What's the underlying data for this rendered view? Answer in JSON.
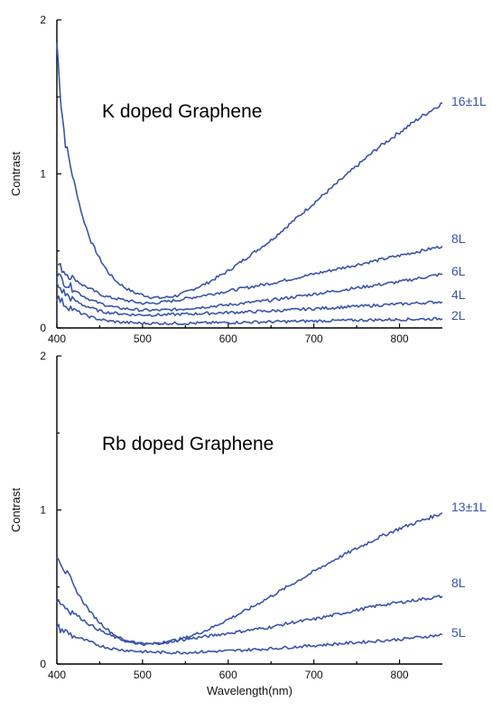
{
  "chart_data": [
    {
      "type": "line",
      "title": "K doped Graphene",
      "xlabel": "",
      "ylabel": "Contrast",
      "xlim": [
        400,
        850
      ],
      "ylim": [
        0,
        2
      ],
      "x_ticks": [
        "400",
        "500",
        "600",
        "700",
        "800"
      ],
      "y_ticks": [
        "0",
        "1",
        "2"
      ],
      "grid": false,
      "series": [
        {
          "name": "16±1L",
          "points": [
            [
              400,
              1.85
            ],
            [
              405,
              1.45
            ],
            [
              410,
              1.2
            ],
            [
              420,
              0.95
            ],
            [
              430,
              0.72
            ],
            [
              440,
              0.56
            ],
            [
              450,
              0.45
            ],
            [
              460,
              0.36
            ],
            [
              470,
              0.3
            ],
            [
              480,
              0.26
            ],
            [
              490,
              0.23
            ],
            [
              500,
              0.215
            ],
            [
              510,
              0.2
            ],
            [
              520,
              0.195
            ],
            [
              530,
              0.2
            ],
            [
              540,
              0.21
            ],
            [
              550,
              0.23
            ],
            [
              575,
              0.29
            ],
            [
              600,
              0.37
            ],
            [
              625,
              0.47
            ],
            [
              650,
              0.57
            ],
            [
              675,
              0.69
            ],
            [
              700,
              0.81
            ],
            [
              725,
              0.93
            ],
            [
              750,
              1.05
            ],
            [
              775,
              1.17
            ],
            [
              800,
              1.27
            ],
            [
              825,
              1.37
            ],
            [
              850,
              1.46
            ]
          ]
        },
        {
          "name": "8L",
          "points": [
            [
              400,
              0.42
            ],
            [
              410,
              0.36
            ],
            [
              420,
              0.32
            ],
            [
              430,
              0.28
            ],
            [
              440,
              0.25
            ],
            [
              450,
              0.22
            ],
            [
              460,
              0.2
            ],
            [
              470,
              0.19
            ],
            [
              480,
              0.18
            ],
            [
              490,
              0.17
            ],
            [
              500,
              0.16
            ],
            [
              510,
              0.16
            ],
            [
              520,
              0.165
            ],
            [
              540,
              0.18
            ],
            [
              560,
              0.2
            ],
            [
              600,
              0.24
            ],
            [
              650,
              0.29
            ],
            [
              700,
              0.35
            ],
            [
              750,
              0.41
            ],
            [
              800,
              0.47
            ],
            [
              850,
              0.53
            ]
          ]
        },
        {
          "name": "6L",
          "points": [
            [
              400,
              0.35
            ],
            [
              410,
              0.29
            ],
            [
              420,
              0.25
            ],
            [
              430,
              0.21
            ],
            [
              440,
              0.18
            ],
            [
              450,
              0.16
            ],
            [
              460,
              0.145
            ],
            [
              470,
              0.13
            ],
            [
              480,
              0.125
            ],
            [
              490,
              0.12
            ],
            [
              500,
              0.115
            ],
            [
              520,
              0.115
            ],
            [
              540,
              0.12
            ],
            [
              560,
              0.13
            ],
            [
              600,
              0.15
            ],
            [
              650,
              0.18
            ],
            [
              700,
              0.22
            ],
            [
              750,
              0.26
            ],
            [
              800,
              0.3
            ],
            [
              850,
              0.35
            ]
          ]
        },
        {
          "name": "4L",
          "points": [
            [
              400,
              0.28
            ],
            [
              410,
              0.22
            ],
            [
              420,
              0.18
            ],
            [
              430,
              0.15
            ],
            [
              440,
              0.13
            ],
            [
              450,
              0.11
            ],
            [
              460,
              0.1
            ],
            [
              470,
              0.095
            ],
            [
              480,
              0.09
            ],
            [
              490,
              0.085
            ],
            [
              500,
              0.085
            ],
            [
              520,
              0.085
            ],
            [
              550,
              0.09
            ],
            [
              600,
              0.1
            ],
            [
              650,
              0.11
            ],
            [
              700,
              0.125
            ],
            [
              750,
              0.14
            ],
            [
              800,
              0.155
            ],
            [
              850,
              0.17
            ]
          ]
        },
        {
          "name": "2L",
          "points": [
            [
              400,
              0.2
            ],
            [
              410,
              0.15
            ],
            [
              420,
              0.12
            ],
            [
              430,
              0.09
            ],
            [
              440,
              0.07
            ],
            [
              450,
              0.055
            ],
            [
              460,
              0.045
            ],
            [
              470,
              0.04
            ],
            [
              480,
              0.035
            ],
            [
              490,
              0.033
            ],
            [
              500,
              0.03
            ],
            [
              550,
              0.03
            ],
            [
              600,
              0.035
            ],
            [
              650,
              0.04
            ],
            [
              700,
              0.045
            ],
            [
              750,
              0.05
            ],
            [
              800,
              0.055
            ],
            [
              850,
              0.06
            ]
          ]
        }
      ]
    },
    {
      "type": "line",
      "title": "Rb doped Graphene",
      "xlabel": "Wavelength(nm)",
      "ylabel": "Contrast",
      "xlim": [
        400,
        850
      ],
      "ylim": [
        0,
        2
      ],
      "x_ticks": [
        "400",
        "500",
        "600",
        "700",
        "800"
      ],
      "y_ticks": [
        "0",
        "1",
        "2"
      ],
      "grid": false,
      "series": [
        {
          "name": "13±1L",
          "points": [
            [
              400,
              0.72
            ],
            [
              410,
              0.6
            ],
            [
              420,
              0.5
            ],
            [
              430,
              0.41
            ],
            [
              440,
              0.33
            ],
            [
              450,
              0.27
            ],
            [
              460,
              0.22
            ],
            [
              470,
              0.18
            ],
            [
              480,
              0.15
            ],
            [
              490,
              0.14
            ],
            [
              500,
              0.13
            ],
            [
              510,
              0.13
            ],
            [
              520,
              0.135
            ],
            [
              530,
              0.145
            ],
            [
              550,
              0.17
            ],
            [
              575,
              0.22
            ],
            [
              600,
              0.29
            ],
            [
              625,
              0.36
            ],
            [
              650,
              0.44
            ],
            [
              675,
              0.52
            ],
            [
              700,
              0.6
            ],
            [
              725,
              0.68
            ],
            [
              750,
              0.75
            ],
            [
              775,
              0.82
            ],
            [
              800,
              0.88
            ],
            [
              825,
              0.93
            ],
            [
              850,
              0.98
            ]
          ]
        },
        {
          "name": "8L",
          "points": [
            [
              400,
              0.42
            ],
            [
              410,
              0.37
            ],
            [
              420,
              0.33
            ],
            [
              430,
              0.29
            ],
            [
              440,
              0.25
            ],
            [
              450,
              0.22
            ],
            [
              460,
              0.19
            ],
            [
              470,
              0.17
            ],
            [
              480,
              0.15
            ],
            [
              490,
              0.14
            ],
            [
              500,
              0.13
            ],
            [
              510,
              0.13
            ],
            [
              525,
              0.14
            ],
            [
              550,
              0.16
            ],
            [
              575,
              0.18
            ],
            [
              600,
              0.2
            ],
            [
              625,
              0.22
            ],
            [
              650,
              0.24
            ],
            [
              675,
              0.27
            ],
            [
              700,
              0.29
            ],
            [
              725,
              0.32
            ],
            [
              750,
              0.35
            ],
            [
              775,
              0.38
            ],
            [
              800,
              0.4
            ],
            [
              825,
              0.42
            ],
            [
              850,
              0.44
            ]
          ]
        },
        {
          "name": "5L",
          "points": [
            [
              400,
              0.24
            ],
            [
              410,
              0.21
            ],
            [
              420,
              0.18
            ],
            [
              430,
              0.16
            ],
            [
              440,
              0.14
            ],
            [
              450,
              0.12
            ],
            [
              460,
              0.105
            ],
            [
              470,
              0.095
            ],
            [
              480,
              0.09
            ],
            [
              490,
              0.085
            ],
            [
              500,
              0.08
            ],
            [
              525,
              0.075
            ],
            [
              550,
              0.075
            ],
            [
              575,
              0.08
            ],
            [
              600,
              0.085
            ],
            [
              650,
              0.1
            ],
            [
              700,
              0.12
            ],
            [
              750,
              0.14
            ],
            [
              800,
              0.16
            ],
            [
              850,
              0.19
            ]
          ]
        }
      ]
    }
  ]
}
